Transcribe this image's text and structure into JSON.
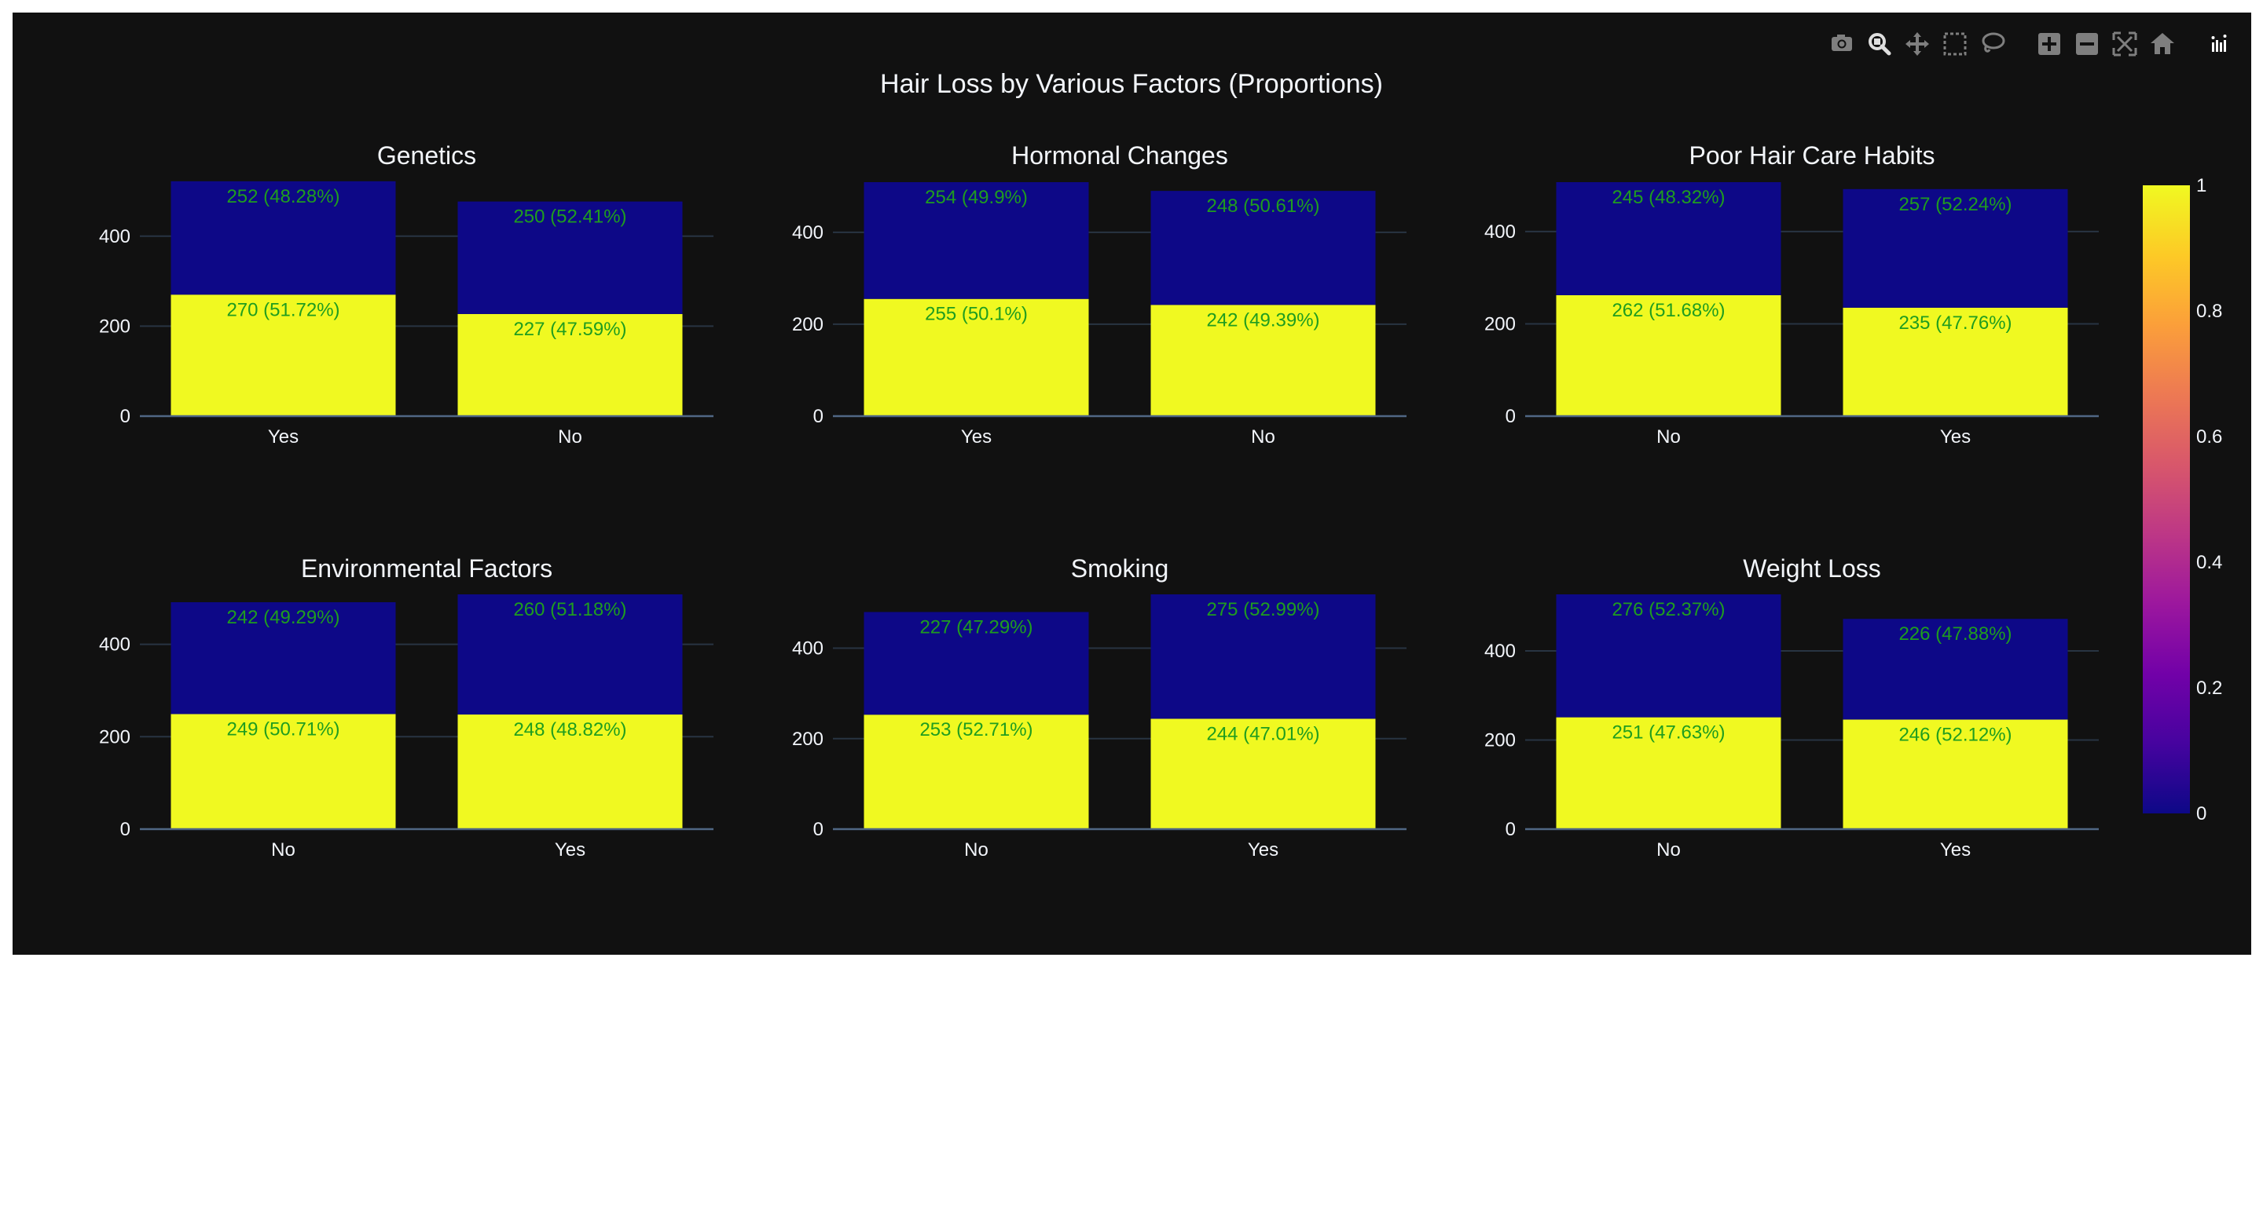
{
  "colors": {
    "paper_bg": "#111111",
    "text": "#f2f5fa",
    "tick_text": "#f2f5fa",
    "grid": "#283442",
    "axis_line": "#506784",
    "bar_label": "#1f9d1f",
    "value_1": "#f0f921",
    "value_0": "#0d0887",
    "modebar_icon": "#7f7f7f",
    "modebar_active": "#dedede"
  },
  "modebar": {
    "icons": [
      "camera-icon",
      "zoom-icon",
      "pan-icon",
      "box-select-icon",
      "lasso-select-icon",
      "zoom-in-icon",
      "zoom-out-icon",
      "autoscale-icon",
      "reset-axes-icon",
      "plotly-logo-icon"
    ]
  },
  "chart_data": {
    "type": "bar",
    "title": "Hair Loss by Various Factors (Proportions)",
    "barmode": "stack",
    "y_ticks": [
      0,
      200,
      400
    ],
    "colorbar": {
      "colorscale": "plasma",
      "range": [
        0,
        1
      ],
      "ticks": [
        "0",
        "0.2",
        "0.4",
        "0.6",
        "0.8",
        "1"
      ]
    },
    "subplots": [
      {
        "title": "Genetics",
        "categories": [
          "Yes",
          "No"
        ],
        "ylim": [
          0,
          520
        ],
        "segments": [
          {
            "hair_loss": 1,
            "values": [
              270,
              227
            ],
            "labels": [
              "270 (51.72%)",
              "227 (47.59%)"
            ]
          },
          {
            "hair_loss": 0,
            "values": [
              252,
              250
            ],
            "labels": [
              "252 (48.28%)",
              "250 (52.41%)"
            ]
          }
        ]
      },
      {
        "title": "Hormonal Changes",
        "categories": [
          "Yes",
          "No"
        ],
        "ylim": [
          0,
          509
        ],
        "segments": [
          {
            "hair_loss": 1,
            "values": [
              255,
              242
            ],
            "labels": [
              "255 (50.1%)",
              "242 (49.39%)"
            ]
          },
          {
            "hair_loss": 0,
            "values": [
              254,
              248
            ],
            "labels": [
              "254 (49.9%)",
              "248 (50.61%)"
            ]
          }
        ]
      },
      {
        "title": "Poor Hair Care Habits",
        "categories": [
          "No",
          "Yes"
        ],
        "ylim": [
          0,
          507
        ],
        "segments": [
          {
            "hair_loss": 1,
            "values": [
              262,
              235
            ],
            "labels": [
              "262 (51.68%)",
              "235 (47.76%)"
            ]
          },
          {
            "hair_loss": 0,
            "values": [
              245,
              257
            ],
            "labels": [
              "245 (48.32%)",
              "257 (52.24%)"
            ]
          }
        ]
      },
      {
        "title": "Environmental Factors",
        "categories": [
          "No",
          "Yes"
        ],
        "ylim": [
          0,
          508
        ],
        "segments": [
          {
            "hair_loss": 1,
            "values": [
              249,
              248
            ],
            "labels": [
              "249 (50.71%)",
              "248 (48.82%)"
            ]
          },
          {
            "hair_loss": 0,
            "values": [
              242,
              260
            ],
            "labels": [
              "242 (49.29%)",
              "260 (51.18%)"
            ]
          }
        ]
      },
      {
        "title": "Smoking",
        "categories": [
          "No",
          "Yes"
        ],
        "ylim": [
          0,
          519
        ],
        "segments": [
          {
            "hair_loss": 1,
            "values": [
              253,
              244
            ],
            "labels": [
              "253 (52.71%)",
              "244 (47.01%)"
            ]
          },
          {
            "hair_loss": 0,
            "values": [
              227,
              275
            ],
            "labels": [
              "227 (47.29%)",
              "275 (52.99%)"
            ]
          }
        ]
      },
      {
        "title": "Weight Loss",
        "categories": [
          "No",
          "Yes"
        ],
        "ylim": [
          0,
          527
        ],
        "segments": [
          {
            "hair_loss": 1,
            "values": [
              251,
              246
            ],
            "labels": [
              "251 (47.63%)",
              "246 (52.12%)"
            ]
          },
          {
            "hair_loss": 0,
            "values": [
              276,
              226
            ],
            "labels": [
              "276 (52.37%)",
              "226 (47.88%)"
            ]
          }
        ]
      }
    ]
  }
}
